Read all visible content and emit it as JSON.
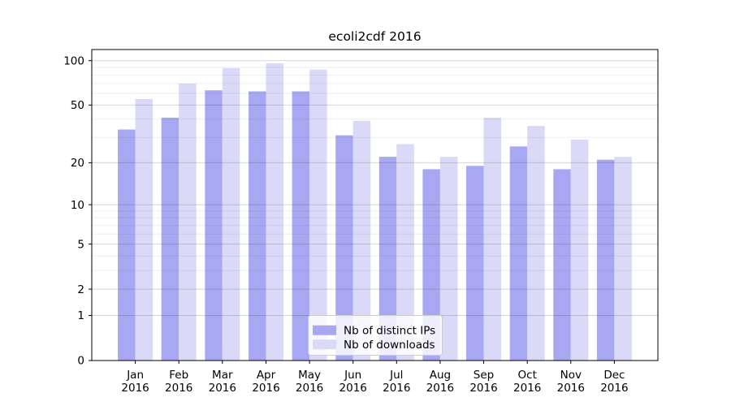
{
  "title": "ecoli2cdf 2016",
  "chart_data": {
    "type": "bar",
    "title": "ecoli2cdf 2016",
    "categories": [
      "Jan",
      "Feb",
      "Mar",
      "Apr",
      "May",
      "Jun",
      "Jul",
      "Aug",
      "Sep",
      "Oct",
      "Nov",
      "Dec"
    ],
    "category_year": "2016",
    "series": [
      {
        "name": "Nb of distinct IPs",
        "color": "#a8a8f2",
        "values": [
          34,
          41,
          63,
          62,
          62,
          31,
          22,
          18,
          19,
          26,
          18,
          21
        ]
      },
      {
        "name": "Nb of downloads",
        "color": "#dadaf8",
        "values": [
          55,
          70,
          89,
          96,
          87,
          39,
          27,
          22,
          41,
          36,
          29,
          22
        ]
      }
    ],
    "y_scale": "log1p",
    "y_ticks": [
      0,
      1,
      2,
      5,
      10,
      20,
      50,
      100
    ],
    "y_minor_gridlines": [
      3,
      4,
      6,
      7,
      8,
      9,
      30,
      40,
      60,
      70,
      80,
      90
    ],
    "ylim": [
      0,
      120
    ],
    "grid": true,
    "legend_position": "lower-center-inside",
    "axis_color": "#000000",
    "major_grid_color": "rgba(0,0,0,0.16)",
    "minor_grid_color": "rgba(0,0,0,0.07)",
    "legend_border_color": "#cccccc",
    "legend_bg_color": "rgba(255,255,255,0.8)"
  }
}
